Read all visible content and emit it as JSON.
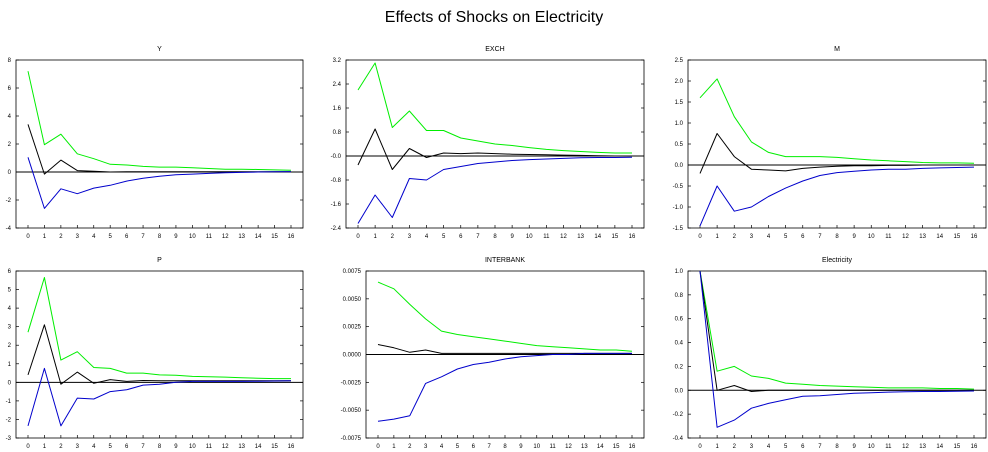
{
  "title": "Effects of Shocks on Electricity",
  "colors": {
    "upper": "#00ee00",
    "estimate": "#000000",
    "lower": "#0000cc",
    "zero_line": "#000000"
  },
  "chart_data": [
    {
      "type": "line",
      "title": "Y",
      "x": [
        0,
        1,
        2,
        3,
        4,
        5,
        6,
        7,
        8,
        9,
        10,
        11,
        12,
        13,
        14,
        15,
        16
      ],
      "x_ticks": [
        "0",
        "1",
        "2",
        "3",
        "4",
        "5",
        "6",
        "7",
        "8",
        "9",
        "10",
        "11",
        "12",
        "13",
        "14",
        "15",
        "16"
      ],
      "ylim": [
        -4,
        8
      ],
      "y_ticks": [
        "-4",
        "-2",
        "0",
        "2",
        "4",
        "6",
        "8"
      ],
      "series": [
        {
          "role": "upper",
          "values": [
            7.2,
            1.95,
            2.7,
            1.3,
            0.95,
            0.55,
            0.5,
            0.4,
            0.35,
            0.35,
            0.3,
            0.25,
            0.2,
            0.2,
            0.18,
            0.15,
            0.12
          ]
        },
        {
          "role": "estimate",
          "values": [
            3.4,
            -0.15,
            0.85,
            0.1,
            0.05,
            0.0,
            0.02,
            0.02,
            0.02,
            0.02,
            0.02,
            0.02,
            0.02,
            0.02,
            0.02,
            0.02,
            0.02
          ]
        },
        {
          "role": "lower",
          "values": [
            1.05,
            -2.6,
            -1.2,
            -1.55,
            -1.15,
            -0.95,
            -0.65,
            -0.45,
            -0.3,
            -0.2,
            -0.15,
            -0.1,
            -0.05,
            -0.03,
            0.0,
            0.02,
            0.03
          ]
        }
      ]
    },
    {
      "type": "line",
      "title": "EXCH",
      "x": [
        0,
        1,
        2,
        3,
        4,
        5,
        6,
        7,
        8,
        9,
        10,
        11,
        12,
        13,
        14,
        15,
        16
      ],
      "x_ticks": [
        "0",
        "1",
        "2",
        "3",
        "4",
        "5",
        "6",
        "7",
        "8",
        "9",
        "10",
        "11",
        "12",
        "13",
        "14",
        "15",
        "16"
      ],
      "ylim": [
        -2.4,
        3.2
      ],
      "y_ticks": [
        "-2.4",
        "-1.6",
        "-0.8",
        "-0.0",
        "0.8",
        "1.6",
        "2.4",
        "3.2"
      ],
      "series": [
        {
          "role": "upper",
          "values": [
            2.2,
            3.1,
            0.95,
            1.5,
            0.85,
            0.85,
            0.6,
            0.5,
            0.4,
            0.35,
            0.28,
            0.22,
            0.18,
            0.15,
            0.12,
            0.1,
            0.1
          ]
        },
        {
          "role": "estimate",
          "values": [
            -0.3,
            0.9,
            -0.45,
            0.25,
            -0.05,
            0.1,
            0.08,
            0.1,
            0.08,
            0.06,
            0.05,
            0.04,
            0.03,
            0.02,
            0.01,
            0.0,
            0.0
          ]
        },
        {
          "role": "lower",
          "values": [
            -2.25,
            -1.3,
            -2.05,
            -0.75,
            -0.8,
            -0.45,
            -0.35,
            -0.25,
            -0.2,
            -0.15,
            -0.12,
            -0.1,
            -0.08,
            -0.06,
            -0.05,
            -0.05,
            -0.04
          ]
        }
      ]
    },
    {
      "type": "line",
      "title": "M",
      "x": [
        0,
        1,
        2,
        3,
        4,
        5,
        6,
        7,
        8,
        9,
        10,
        11,
        12,
        13,
        14,
        15,
        16
      ],
      "x_ticks": [
        "0",
        "1",
        "2",
        "3",
        "4",
        "5",
        "6",
        "7",
        "8",
        "9",
        "10",
        "11",
        "12",
        "13",
        "14",
        "15",
        "16"
      ],
      "ylim": [
        -1.5,
        2.5
      ],
      "y_ticks": [
        "-1.5",
        "-1.0",
        "-0.5",
        "0.0",
        "0.5",
        "1.0",
        "1.5",
        "2.0",
        "2.5"
      ],
      "series": [
        {
          "role": "upper",
          "values": [
            1.6,
            2.05,
            1.15,
            0.55,
            0.3,
            0.2,
            0.2,
            0.2,
            0.18,
            0.15,
            0.12,
            0.1,
            0.08,
            0.06,
            0.05,
            0.05,
            0.04
          ]
        },
        {
          "role": "estimate",
          "values": [
            -0.2,
            0.75,
            0.2,
            -0.1,
            -0.12,
            -0.14,
            -0.08,
            -0.05,
            -0.03,
            -0.02,
            -0.02,
            -0.01,
            -0.01,
            0.0,
            0.0,
            0.0,
            0.0
          ]
        },
        {
          "role": "lower",
          "values": [
            -1.45,
            -0.5,
            -1.1,
            -1.0,
            -0.75,
            -0.55,
            -0.38,
            -0.25,
            -0.18,
            -0.15,
            -0.12,
            -0.1,
            -0.1,
            -0.08,
            -0.07,
            -0.06,
            -0.05
          ]
        }
      ]
    },
    {
      "type": "line",
      "title": "P",
      "x": [
        0,
        1,
        2,
        3,
        4,
        5,
        6,
        7,
        8,
        9,
        10,
        11,
        12,
        13,
        14,
        15,
        16
      ],
      "x_ticks": [
        "0",
        "1",
        "2",
        "3",
        "4",
        "5",
        "6",
        "7",
        "8",
        "9",
        "10",
        "11",
        "12",
        "13",
        "14",
        "15",
        "16"
      ],
      "ylim": [
        -3,
        6
      ],
      "y_ticks": [
        "-3",
        "-2",
        "-1",
        "0",
        "1",
        "2",
        "3",
        "4",
        "5",
        "6"
      ],
      "series": [
        {
          "role": "upper",
          "values": [
            2.7,
            5.65,
            1.2,
            1.65,
            0.8,
            0.75,
            0.5,
            0.5,
            0.4,
            0.38,
            0.32,
            0.3,
            0.28,
            0.25,
            0.22,
            0.2,
            0.2
          ]
        },
        {
          "role": "estimate",
          "values": [
            0.4,
            3.1,
            -0.1,
            0.55,
            -0.05,
            0.15,
            0.05,
            0.1,
            0.08,
            0.08,
            0.08,
            0.08,
            0.08,
            0.08,
            0.08,
            0.08,
            0.08
          ]
        },
        {
          "role": "lower",
          "values": [
            -2.35,
            0.75,
            -2.35,
            -0.85,
            -0.9,
            -0.5,
            -0.4,
            -0.15,
            -0.1,
            0.0,
            0.05,
            0.05,
            0.05,
            0.05,
            0.06,
            0.07,
            0.08
          ]
        }
      ]
    },
    {
      "type": "line",
      "title": "INTERBANK",
      "x": [
        0,
        1,
        2,
        3,
        4,
        5,
        6,
        7,
        8,
        9,
        10,
        11,
        12,
        13,
        14,
        15,
        16
      ],
      "x_ticks": [
        "0",
        "1",
        "2",
        "3",
        "4",
        "5",
        "6",
        "7",
        "8",
        "9",
        "10",
        "11",
        "12",
        "13",
        "14",
        "15",
        "16"
      ],
      "ylim": [
        -0.0075,
        0.0075
      ],
      "y_ticks": [
        "-0.0075",
        "-0.0050",
        "-0.0025",
        "0.0000",
        "0.0025",
        "0.0050",
        "0.0075"
      ],
      "series": [
        {
          "role": "upper",
          "values": [
            0.0065,
            0.0059,
            0.0045,
            0.0032,
            0.0021,
            0.0018,
            0.0016,
            0.0014,
            0.0012,
            0.001,
            0.0008,
            0.0007,
            0.0006,
            0.0005,
            0.0004,
            0.0004,
            0.0003
          ]
        },
        {
          "role": "estimate",
          "values": [
            0.0009,
            0.0006,
            0.0002,
            0.0004,
            0.0001,
            0.0001,
            0.0001,
            0.0001,
            0.0001,
            0.0001,
            0.0001,
            0.0001,
            0.0001,
            0.0001,
            0.0001,
            0.0001,
            0.0001
          ]
        },
        {
          "role": "lower",
          "values": [
            -0.006,
            -0.0058,
            -0.0055,
            -0.0026,
            -0.002,
            -0.0013,
            -0.0009,
            -0.0007,
            -0.0004,
            -0.0002,
            -0.0001,
            0.0,
            0.0,
            0.0001,
            0.0001,
            0.0001,
            0.0001
          ]
        }
      ]
    },
    {
      "type": "line",
      "title": "Electricity",
      "x": [
        0,
        1,
        2,
        3,
        4,
        5,
        6,
        7,
        8,
        9,
        10,
        11,
        12,
        13,
        14,
        15,
        16
      ],
      "x_ticks": [
        "0",
        "1",
        "2",
        "3",
        "4",
        "5",
        "6",
        "7",
        "8",
        "9",
        "10",
        "11",
        "12",
        "13",
        "14",
        "15",
        "16"
      ],
      "ylim": [
        -0.4,
        1.0
      ],
      "y_ticks": [
        "-0.4",
        "-0.2",
        "0.0",
        "0.2",
        "0.4",
        "0.6",
        "0.8",
        "1.0"
      ],
      "series": [
        {
          "role": "upper",
          "values": [
            1.0,
            0.16,
            0.2,
            0.12,
            0.1,
            0.06,
            0.05,
            0.04,
            0.035,
            0.03,
            0.025,
            0.02,
            0.02,
            0.02,
            0.015,
            0.015,
            0.01
          ]
        },
        {
          "role": "estimate",
          "values": [
            1.0,
            0.0,
            0.04,
            -0.01,
            0.0,
            0.0,
            0.0,
            0.0,
            0.0,
            0.0,
            0.0,
            0.0,
            0.0,
            0.0,
            0.0,
            0.0,
            0.0
          ]
        },
        {
          "role": "lower",
          "values": [
            1.0,
            -0.31,
            -0.25,
            -0.15,
            -0.11,
            -0.08,
            -0.05,
            -0.045,
            -0.035,
            -0.025,
            -0.02,
            -0.015,
            -0.012,
            -0.01,
            -0.01,
            -0.008,
            -0.006
          ]
        }
      ]
    }
  ]
}
